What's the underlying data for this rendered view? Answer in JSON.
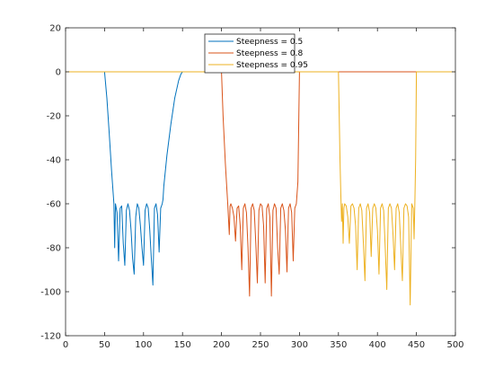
{
  "chart_data": {
    "type": "line",
    "title": "",
    "xlabel": "",
    "ylabel": "",
    "xlim": [
      0,
      500
    ],
    "ylim": [
      -120,
      20
    ],
    "xticks": [
      0,
      50,
      100,
      150,
      200,
      250,
      300,
      350,
      400,
      450,
      500
    ],
    "yticks": [
      20,
      0,
      -20,
      -40,
      -60,
      -80,
      -100,
      -120
    ],
    "grid": false,
    "legend_position": "top-center",
    "series": [
      {
        "name": "Steepness = 0.5",
        "color": "#0072bd",
        "stopband": [
          60,
          126
        ],
        "x": [
          0,
          50,
          53,
          56,
          59,
          62,
          63,
          64,
          66,
          68,
          70,
          72,
          74,
          76,
          78,
          80,
          82,
          84,
          86,
          88,
          90,
          92,
          94,
          96,
          98,
          100,
          102,
          104,
          106,
          108,
          110,
          112,
          114,
          116,
          118,
          120,
          122,
          124,
          125,
          126,
          130,
          135,
          140,
          145,
          148,
          150,
          500
        ],
        "y": [
          0,
          0,
          -12,
          -28,
          -45,
          -60,
          -80,
          -60,
          -64,
          -86,
          -62,
          -61,
          -78,
          -88,
          -63,
          -60,
          -63,
          -72,
          -85,
          -92,
          -66,
          -60,
          -62,
          -70,
          -80,
          -88,
          -63,
          -60,
          -62,
          -72,
          -85,
          -97,
          -62,
          -60,
          -65,
          -82,
          -62,
          -60,
          -58,
          -52,
          -38,
          -24,
          -12,
          -4,
          -1,
          0,
          0
        ]
      },
      {
        "name": "Steepness = 0.8",
        "color": "#d95319",
        "stopband": [
          208,
          294
        ],
        "x": [
          0,
          200,
          202,
          205,
          208,
          210,
          211,
          212,
          214,
          216,
          218,
          220,
          222,
          224,
          226,
          228,
          230,
          232,
          234,
          236,
          238,
          240,
          242,
          244,
          246,
          248,
          250,
          252,
          254,
          256,
          258,
          260,
          262,
          264,
          266,
          268,
          270,
          272,
          274,
          276,
          278,
          280,
          282,
          284,
          286,
          288,
          290,
          292,
          294,
          296,
          298,
          300,
          500
        ],
        "y": [
          0,
          0,
          -20,
          -42,
          -60,
          -74,
          -61,
          -60,
          -62,
          -66,
          -77,
          -62,
          -61,
          -70,
          -90,
          -62,
          -60,
          -64,
          -80,
          -102,
          -62,
          -60,
          -63,
          -78,
          -96,
          -63,
          -60,
          -61,
          -70,
          -96,
          -62,
          -60,
          -66,
          -102,
          -63,
          -60,
          -62,
          -80,
          -92,
          -62,
          -60,
          -63,
          -72,
          -91,
          -62,
          -60,
          -64,
          -86,
          -62,
          -60,
          -50,
          0,
          0
        ]
      },
      {
        "name": "Steepness = 0.95",
        "color": "#edb120",
        "stopband": [
          354,
          446
        ],
        "x": [
          0,
          350,
          351,
          352,
          353,
          354,
          355,
          356,
          357,
          358,
          360,
          362,
          364,
          366,
          368,
          370,
          372,
          374,
          376,
          378,
          380,
          382,
          384,
          386,
          388,
          390,
          392,
          394,
          396,
          398,
          400,
          402,
          404,
          406,
          408,
          410,
          412,
          414,
          416,
          418,
          420,
          422,
          424,
          426,
          428,
          430,
          432,
          434,
          436,
          438,
          440,
          442,
          444,
          446,
          447,
          448,
          449,
          450,
          500
        ],
        "y": [
          0,
          0,
          -20,
          -40,
          -55,
          -68,
          -60,
          -78,
          -62,
          -60,
          -61,
          -66,
          -78,
          -61,
          -60,
          -62,
          -70,
          -90,
          -62,
          -60,
          -63,
          -78,
          -95,
          -62,
          -60,
          -64,
          -84,
          -62,
          -60,
          -62,
          -72,
          -92,
          -62,
          -60,
          -63,
          -80,
          -99,
          -62,
          -60,
          -62,
          -74,
          -90,
          -62,
          -60,
          -64,
          -80,
          -95,
          -62,
          -60,
          -61,
          -66,
          -106,
          -60,
          -62,
          -76,
          -60,
          -40,
          0,
          0
        ]
      }
    ]
  }
}
